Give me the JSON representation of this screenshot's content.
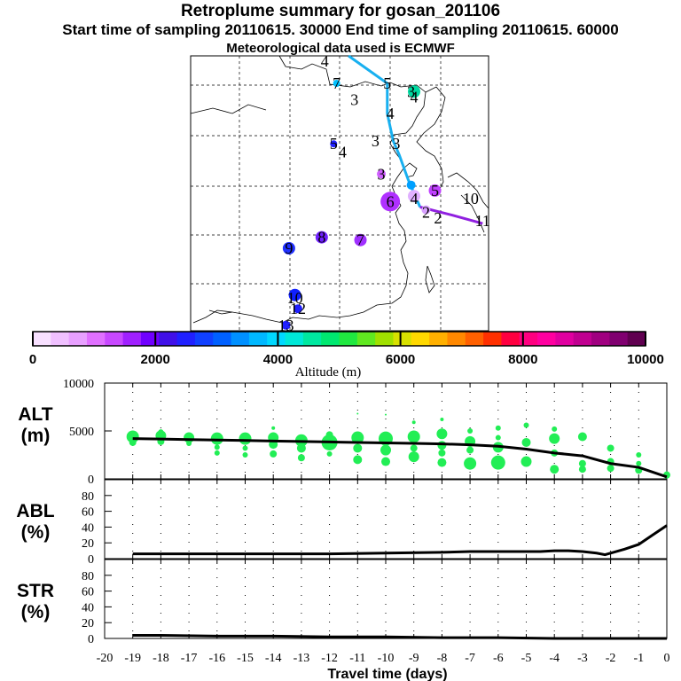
{
  "header": {
    "title": "Retroplume summary for gosan_201106",
    "sampling_line": "Start time of sampling 20110615. 30000      End time of sampling 20110615. 60000",
    "met_line": "Meteorological data used is ECMWF"
  },
  "colorbar": {
    "title": "Altitude (m)",
    "ticks": [
      "0",
      "2000",
      "4000",
      "6000",
      "8000",
      "10000"
    ],
    "colors": [
      "#f8e0ff",
      "#f0c0ff",
      "#e8a0ff",
      "#e070ff",
      "#c848ff",
      "#a020ff",
      "#7000ff",
      "#4010e8",
      "#2020ff",
      "#1040ff",
      "#0060ff",
      "#0090ff",
      "#00b8ff",
      "#00d8ff",
      "#00e8d8",
      "#00e8a0",
      "#00e870",
      "#20e840",
      "#60e820",
      "#a0e000",
      "#d8e000",
      "#ffd800",
      "#ffb000",
      "#ff8800",
      "#ff6000",
      "#ff3000",
      "#ff0040",
      "#ff0080",
      "#ff00a0",
      "#e000a0",
      "#c00090",
      "#a00080",
      "#800070",
      "#600050"
    ]
  },
  "map": {
    "plume_labels": [
      {
        "t": "4",
        "lon": 0.45,
        "lat": 0.02,
        "c": "#000"
      },
      {
        "t": "5",
        "lon": 0.66,
        "lat": 0.1,
        "c": "#000"
      },
      {
        "t": "3",
        "lon": 0.55,
        "lat": 0.16,
        "c": "#000"
      },
      {
        "t": "4",
        "lon": 0.67,
        "lat": 0.21,
        "c": "#000"
      },
      {
        "t": "3",
        "lon": 0.62,
        "lat": 0.31,
        "c": "#000"
      },
      {
        "t": "3",
        "lon": 0.69,
        "lat": 0.32,
        "c": "#000"
      },
      {
        "t": "5",
        "lon": 0.48,
        "lat": 0.32,
        "c": "#000"
      },
      {
        "t": "4",
        "lon": 0.51,
        "lat": 0.35,
        "c": "#000"
      },
      {
        "t": "3",
        "lon": 0.64,
        "lat": 0.43,
        "c": "#000"
      },
      {
        "t": "3",
        "lon": 0.74,
        "lat": 0.13,
        "c": "#000"
      },
      {
        "t": "4",
        "lon": 0.75,
        "lat": 0.15,
        "c": "#000"
      },
      {
        "t": "7",
        "lon": 0.49,
        "lat": 0.1,
        "c": "#000"
      },
      {
        "t": "6",
        "lon": 0.67,
        "lat": 0.53,
        "c": "#000"
      },
      {
        "t": "4",
        "lon": 0.75,
        "lat": 0.52,
        "c": "#000"
      },
      {
        "t": "5",
        "lon": 0.82,
        "lat": 0.49,
        "c": "#000"
      },
      {
        "t": "2",
        "lon": 0.79,
        "lat": 0.57,
        "c": "#000"
      },
      {
        "t": "2",
        "lon": 0.83,
        "lat": 0.59,
        "c": "#000"
      },
      {
        "t": "10",
        "lon": 0.94,
        "lat": 0.52,
        "c": "#000"
      },
      {
        "t": "11",
        "lon": 0.98,
        "lat": 0.6,
        "c": "#000"
      },
      {
        "t": "8",
        "lon": 0.44,
        "lat": 0.66,
        "c": "#000"
      },
      {
        "t": "7",
        "lon": 0.57,
        "lat": 0.67,
        "c": "#000"
      },
      {
        "t": "9",
        "lon": 0.33,
        "lat": 0.7,
        "c": "#000"
      },
      {
        "t": "10",
        "lon": 0.35,
        "lat": 0.88,
        "c": "#000"
      },
      {
        "t": "12",
        "lon": 0.36,
        "lat": 0.92,
        "c": "#000"
      },
      {
        "t": "13",
        "lon": 0.32,
        "lat": 0.98,
        "c": "#000"
      }
    ],
    "blobs": [
      {
        "lon": 0.75,
        "lat": 0.13,
        "r": 7,
        "c": "#00d8a0"
      },
      {
        "lon": 0.49,
        "lat": 0.1,
        "r": 4,
        "c": "#00c0ff"
      },
      {
        "lon": 0.48,
        "lat": 0.32,
        "r": 4,
        "c": "#2020ff"
      },
      {
        "lon": 0.64,
        "lat": 0.43,
        "r": 5,
        "c": "#d060ff"
      },
      {
        "lon": 0.74,
        "lat": 0.47,
        "r": 5,
        "c": "#00a0ff"
      },
      {
        "lon": 0.67,
        "lat": 0.53,
        "r": 11,
        "c": "#b030ff"
      },
      {
        "lon": 0.75,
        "lat": 0.51,
        "r": 7,
        "c": "#e0b0ff"
      },
      {
        "lon": 0.82,
        "lat": 0.49,
        "r": 7,
        "c": "#c040ff"
      },
      {
        "lon": 0.79,
        "lat": 0.56,
        "r": 5,
        "c": "#d8a0ff"
      },
      {
        "lon": 0.44,
        "lat": 0.66,
        "r": 7,
        "c": "#7020ff"
      },
      {
        "lon": 0.57,
        "lat": 0.67,
        "r": 7,
        "c": "#a030ff"
      },
      {
        "lon": 0.33,
        "lat": 0.7,
        "r": 7,
        "c": "#2030ff"
      },
      {
        "lon": 0.35,
        "lat": 0.87,
        "r": 7,
        "c": "#1020ff"
      },
      {
        "lon": 0.36,
        "lat": 0.92,
        "r": 5,
        "c": "#2020ff"
      },
      {
        "lon": 0.32,
        "lat": 0.98,
        "r": 5,
        "c": "#2020ff"
      }
    ],
    "track_blue": [
      [
        0.53,
        0.0
      ],
      [
        0.66,
        0.1
      ],
      [
        0.66,
        0.21
      ],
      [
        0.68,
        0.31
      ],
      [
        0.7,
        0.36
      ],
      [
        0.73,
        0.45
      ],
      [
        0.77,
        0.55
      ]
    ],
    "track_purple": [
      [
        0.77,
        0.55
      ],
      [
        0.88,
        0.58
      ],
      [
        0.98,
        0.61
      ]
    ]
  },
  "chart_data": [
    {
      "type": "scatter",
      "panel": "ALT",
      "ylabel": "ALT\n(m)",
      "ylabel_lines": [
        "ALT",
        "(m)"
      ],
      "ylim": [
        0,
        10000
      ],
      "yticks": [
        "0",
        "5000",
        "10000"
      ],
      "xlim": [
        -20,
        0
      ],
      "mean_line": {
        "x": [
          -19.0,
          -18,
          -17,
          -16,
          -15,
          -14,
          -13,
          -12,
          -11,
          -10,
          -9,
          -8,
          -7,
          -6,
          -5,
          -4,
          -3,
          -2,
          -1,
          0
        ],
        "y": [
          4200,
          4150,
          4100,
          4050,
          4000,
          3950,
          3900,
          3850,
          3800,
          3750,
          3700,
          3650,
          3550,
          3400,
          3100,
          2700,
          2400,
          1600,
          1200,
          200
        ]
      },
      "points": [
        [
          -19,
          4400,
          7
        ],
        [
          -19,
          3800,
          4
        ],
        [
          -18,
          4500,
          6
        ],
        [
          -18,
          3900,
          4
        ],
        [
          -18,
          4900,
          3
        ],
        [
          -17,
          4300,
          6
        ],
        [
          -17,
          3700,
          3
        ],
        [
          -16,
          4200,
          7
        ],
        [
          -16,
          3300,
          3
        ],
        [
          -16,
          2700,
          3
        ],
        [
          -15,
          4200,
          7
        ],
        [
          -15,
          3200,
          3
        ],
        [
          -15,
          2500,
          3
        ],
        [
          -14,
          4300,
          6
        ],
        [
          -14,
          3600,
          5
        ],
        [
          -14,
          2600,
          4
        ],
        [
          -14,
          5300,
          2
        ],
        [
          -13,
          4000,
          7
        ],
        [
          -13,
          3200,
          5
        ],
        [
          -13,
          2200,
          4
        ],
        [
          -12,
          3800,
          9
        ],
        [
          -12,
          4600,
          4
        ],
        [
          -12,
          2600,
          3
        ],
        [
          -11,
          4300,
          7
        ],
        [
          -11,
          3200,
          5
        ],
        [
          -11,
          2000,
          5
        ],
        [
          -11,
          6800,
          1
        ],
        [
          -10,
          4200,
          8
        ],
        [
          -10,
          3000,
          6
        ],
        [
          -10,
          1800,
          5
        ],
        [
          -10,
          6700,
          1
        ],
        [
          -9,
          4400,
          7
        ],
        [
          -9,
          3200,
          4
        ],
        [
          -9,
          2300,
          6
        ],
        [
          -9,
          5900,
          2
        ],
        [
          -8,
          4700,
          6
        ],
        [
          -8,
          3500,
          5
        ],
        [
          -8,
          2700,
          4
        ],
        [
          -8,
          1700,
          5
        ],
        [
          -8,
          6200,
          2
        ],
        [
          -7,
          3900,
          6
        ],
        [
          -7,
          3000,
          4
        ],
        [
          -7,
          1600,
          7
        ],
        [
          -7,
          5000,
          3
        ],
        [
          -6,
          3300,
          6
        ],
        [
          -6,
          1700,
          8
        ],
        [
          -6,
          5300,
          3
        ],
        [
          -6,
          4300,
          3
        ],
        [
          -5,
          3800,
          5
        ],
        [
          -5,
          1800,
          6
        ],
        [
          -5,
          5600,
          3
        ],
        [
          -4,
          4200,
          6
        ],
        [
          -4,
          2700,
          4
        ],
        [
          -4,
          1000,
          5
        ],
        [
          -4,
          5200,
          3
        ],
        [
          -3,
          4400,
          5
        ],
        [
          -3,
          1600,
          4
        ],
        [
          -3,
          1000,
          4
        ],
        [
          -2,
          3200,
          4
        ],
        [
          -2,
          1800,
          4
        ],
        [
          -2,
          1100,
          4
        ],
        [
          -1,
          2500,
          3
        ],
        [
          -1,
          900,
          4
        ],
        [
          -1,
          1600,
          3
        ],
        [
          0,
          400,
          4
        ]
      ],
      "color": "#22ee55"
    },
    {
      "type": "line",
      "panel": "ABL",
      "ylabel_lines": [
        "ABL",
        "(%)"
      ],
      "ylim": [
        0,
        100
      ],
      "yticks": [
        "0",
        "20",
        "40",
        "60",
        "80"
      ],
      "x": [
        -19.0,
        -18,
        -16,
        -14,
        -12,
        -10,
        -8,
        -7,
        -6,
        -5,
        -4.5,
        -4,
        -3.5,
        -3,
        -2.5,
        -2.2,
        -2,
        -1.5,
        -1,
        -0.5,
        0
      ],
      "y": [
        6,
        6,
        6,
        6,
        6,
        7,
        8,
        9,
        9,
        9,
        9,
        10,
        10,
        9,
        7,
        5,
        7,
        12,
        18,
        30,
        42
      ]
    },
    {
      "type": "line",
      "panel": "STR",
      "ylabel_lines": [
        "STR",
        "(%)"
      ],
      "ylim": [
        0,
        100
      ],
      "yticks": [
        "0",
        "20",
        "40",
        "60",
        "80"
      ],
      "x": [
        -19.0,
        -18,
        -16,
        -14,
        -12,
        -10,
        -8,
        -6,
        -4,
        -2,
        0
      ],
      "y": [
        4,
        4,
        3,
        3,
        2,
        2,
        1,
        1,
        0,
        0,
        0
      ],
      "xlabel": "Travel time (days)",
      "xticks": [
        "-20",
        "-19",
        "-18",
        "-17",
        "-16",
        "-15",
        "-14",
        "-13",
        "-12",
        "-11",
        "-10",
        "-9",
        "-8",
        "-7",
        "-6",
        "-5",
        "-4",
        "-3",
        "-2",
        "-1",
        "0"
      ]
    }
  ]
}
